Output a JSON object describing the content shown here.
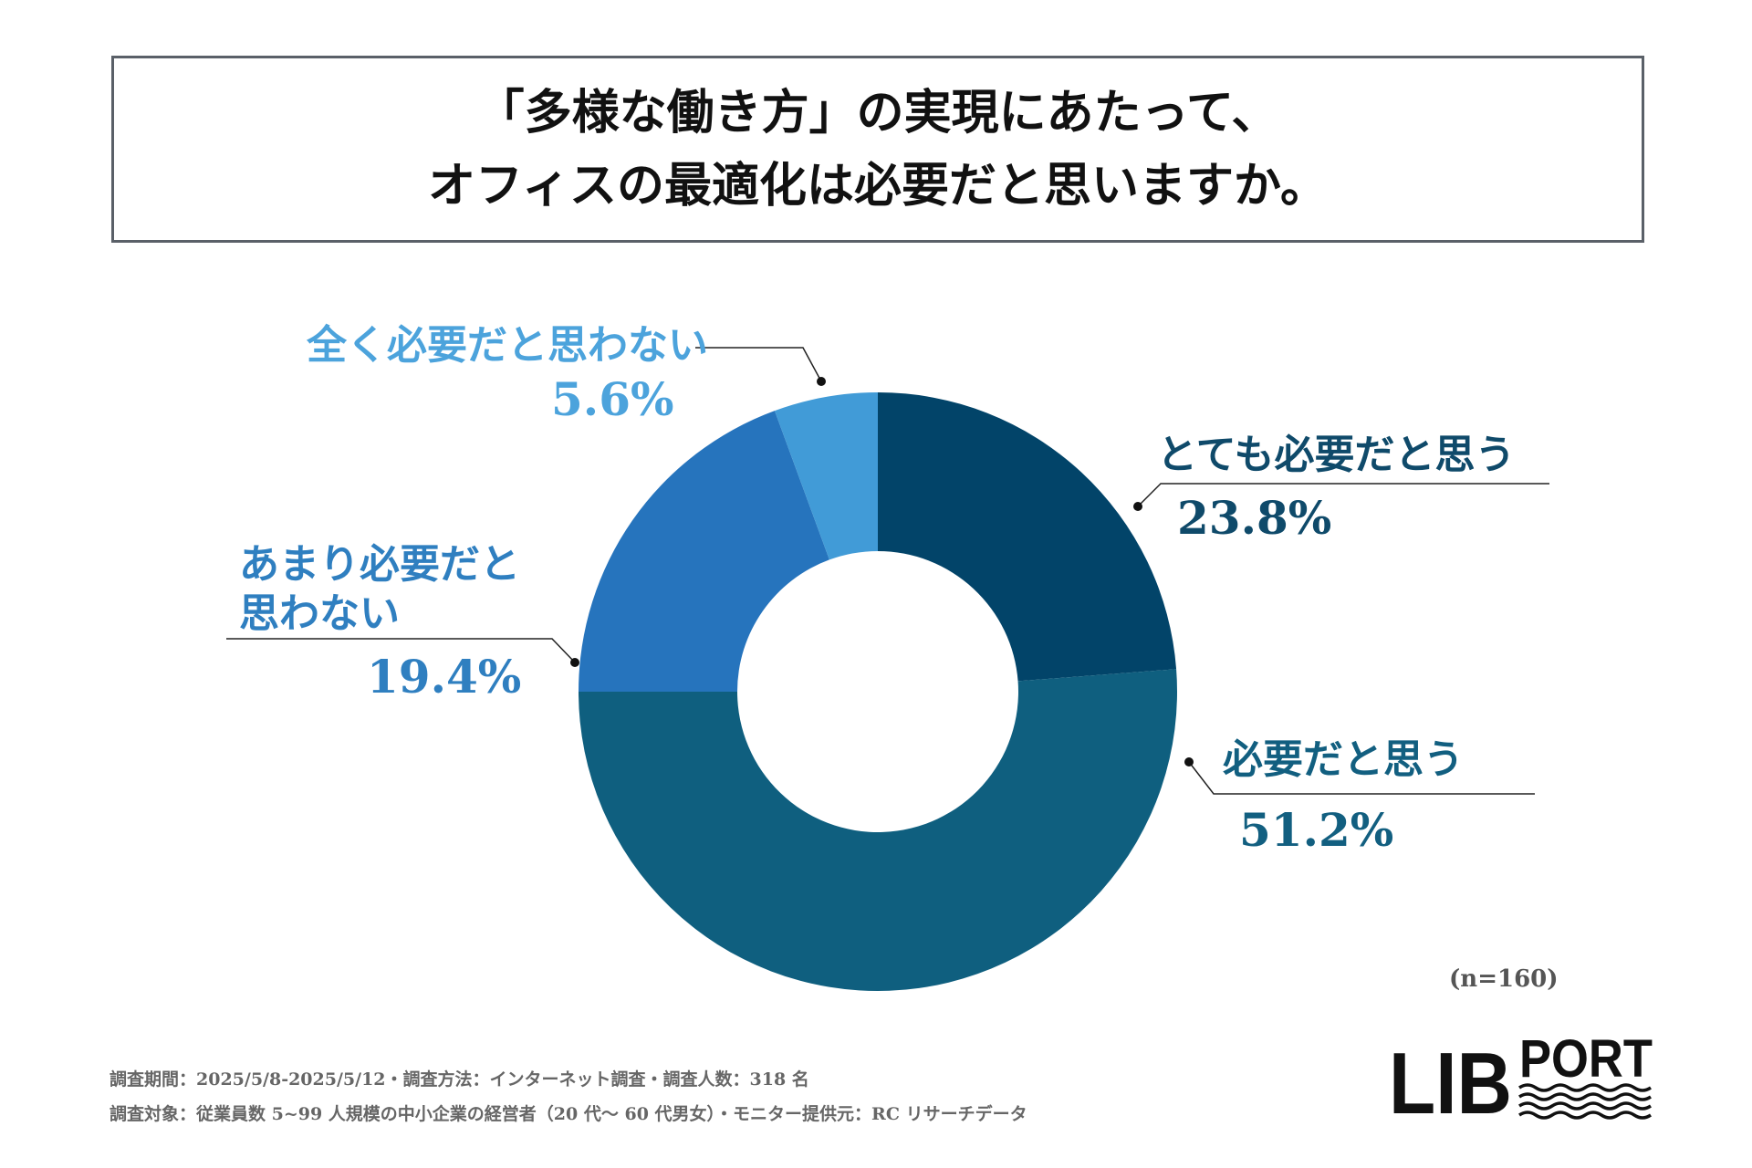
{
  "title": {
    "line1": "「多様な働き方」の実現にあたって、",
    "line2": "オフィスの最適化は必要だと思いますか。"
  },
  "chart_data": {
    "type": "pie",
    "variant": "donut",
    "categories": [
      "とても必要だと思う",
      "必要だと思う",
      "あまり必要だと思わない",
      "全く必要だと思わない"
    ],
    "values": [
      23.8,
      51.2,
      19.4,
      5.6
    ],
    "value_labels": [
      "23.8%",
      "51.2%",
      "19.4%",
      "5.6%"
    ],
    "colors": [
      "#024469",
      "#0f5f7f",
      "#2674bd",
      "#419bd7"
    ],
    "start": "12 o'clock, clockwise"
  },
  "labels": {
    "s1_name": "とても必要だと思う",
    "s1_pct": "23.8%",
    "s2_name": "必要だと思う",
    "s2_pct": "51.2%",
    "s3_name_line1": "あまり必要だと",
    "s3_name_line2": "思わない",
    "s3_pct": "19.4%",
    "s4_name": "全く必要だと思わない",
    "s4_pct": "5.6%"
  },
  "sample_size": "(n=160)",
  "footnotes": {
    "line1": "調査期間：2025/5/8-2025/5/12・調査方法：インターネット調査・調査人数：318 名",
    "line2": "調査対象：従業員数 5~99 人規模の中小企業の経営者（20 代〜 60 代男女）・モニター提供元：RC リサーチデータ"
  },
  "logo": {
    "text_main": "LIB",
    "text_sub": "PORT"
  }
}
